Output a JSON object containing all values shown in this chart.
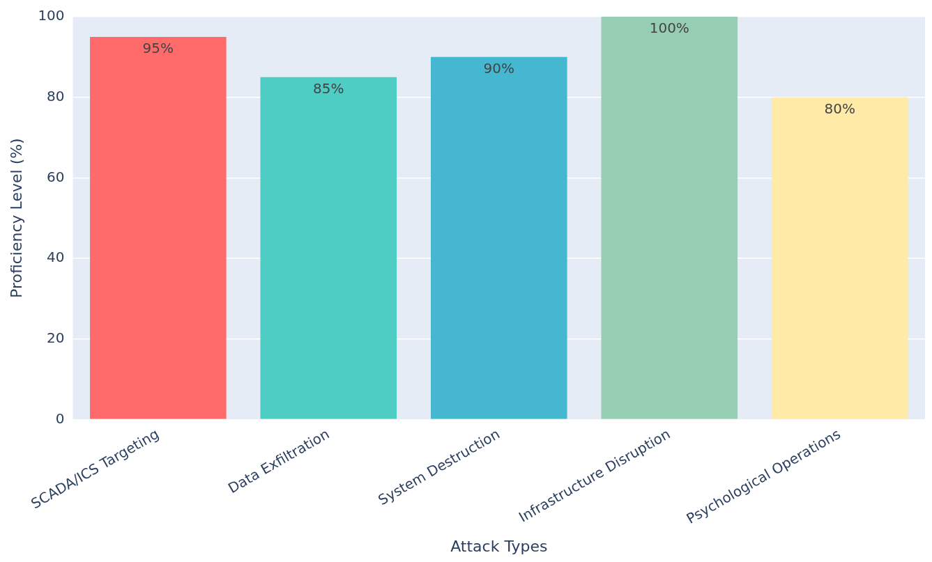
{
  "chart_data": {
    "type": "bar",
    "xlabel": "Attack Types",
    "ylabel": "Proficiency Level (%)",
    "categories": [
      "SCADA/ICS Targeting",
      "Data Exfiltration",
      "System Destruction",
      "Infrastructure Disruption",
      "Psychological Operations"
    ],
    "values": [
      95,
      85,
      90,
      100,
      80
    ],
    "colors": [
      "#ff6b6b",
      "#4ecdc4",
      "#45b7d1",
      "#96ceb4",
      "#ffeaa7"
    ],
    "value_labels": [
      "95%",
      "85%",
      "90%",
      "100%",
      "80%"
    ],
    "ylim": [
      0,
      100
    ],
    "yticks": [
      0,
      20,
      40,
      60,
      80,
      100
    ],
    "grid": "y",
    "legend": false
  }
}
